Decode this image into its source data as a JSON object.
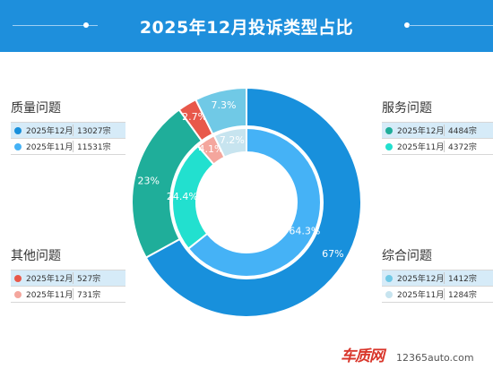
{
  "header": {
    "title": "2025年12月投诉类型占比"
  },
  "chart_data": {
    "type": "pie",
    "subtype": "nested-donut",
    "series": [
      {
        "name": "2025年12月",
        "ring": "outer",
        "values": [
          67,
          23,
          2.7,
          7.3
        ],
        "labels": [
          "67%",
          "23%",
          "2.7%",
          "7.3%"
        ]
      },
      {
        "name": "2025年11月",
        "ring": "inner",
        "values": [
          64.3,
          24.4,
          4.1,
          7.2
        ],
        "labels": [
          "64.3%",
          "24.4%",
          "4.1%",
          "7.2%"
        ]
      }
    ],
    "categories": [
      {
        "name": "服务问题",
        "rows": [
          {
            "month": "2025年12月",
            "count": "4484宗",
            "color": "#1fae9a"
          },
          {
            "month": "2025年11月",
            "count": "4372宗",
            "color": "#22e0cf"
          }
        ]
      },
      {
        "name": "质量问题",
        "rows": [
          {
            "month": "2025年12月",
            "count": "13027宗",
            "color": "#1890dc"
          },
          {
            "month": "2025年11月",
            "count": "11531宗",
            "color": "#45b2f6"
          }
        ]
      },
      {
        "name": "其他问题",
        "rows": [
          {
            "month": "2025年12月",
            "count": "527宗",
            "color": "#e8584a"
          },
          {
            "month": "2025年11月",
            "count": "731宗",
            "color": "#f4a69d"
          }
        ]
      },
      {
        "name": "综合问题",
        "rows": [
          {
            "month": "2025年12月",
            "count": "1412宗",
            "color": "#70c9e6"
          },
          {
            "month": "2025年11月",
            "count": "1284宗",
            "color": "#c7e4ef"
          }
        ]
      }
    ]
  },
  "watermark": {
    "brand": "车质网",
    "site": "12365auto.com"
  }
}
